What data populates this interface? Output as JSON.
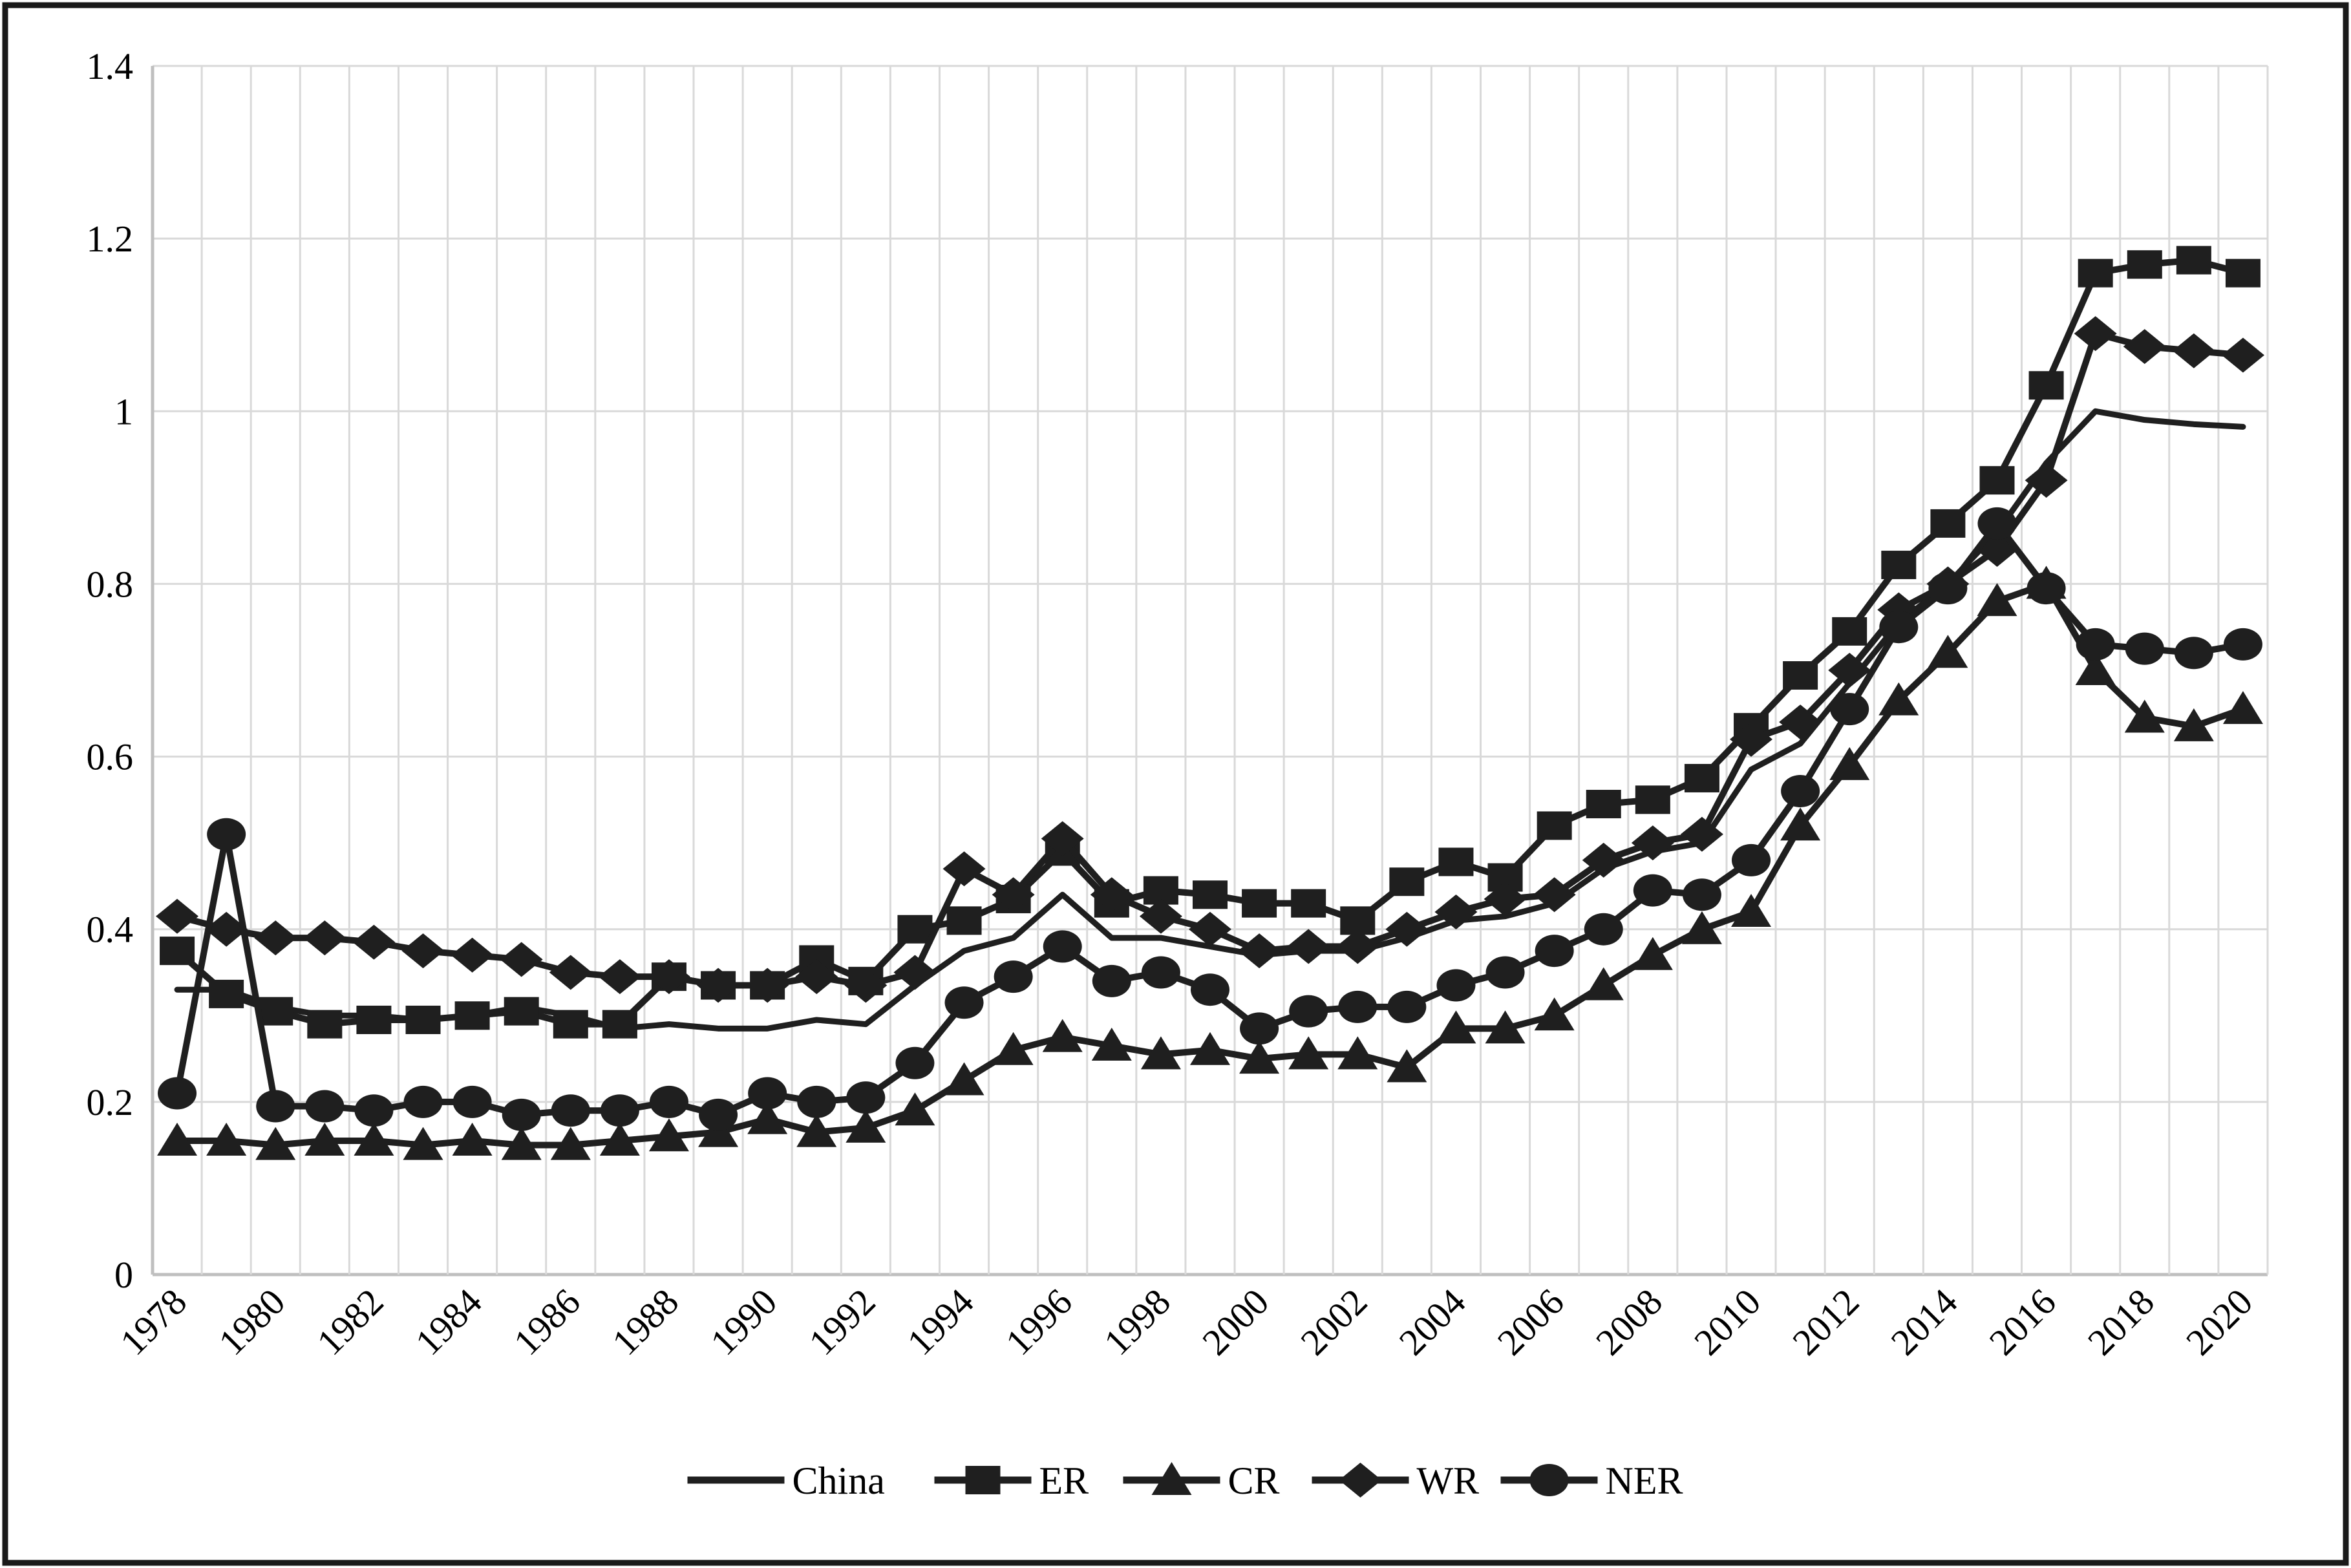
{
  "figure": {
    "background": "#ffffff",
    "border_color": "#1a1a1a",
    "plot_background": "#ffffff"
  },
  "chart_data": {
    "type": "line",
    "title": "",
    "xlabel": "",
    "ylabel": "",
    "ylim": [
      0,
      1.4
    ],
    "ytick_step": 0.2,
    "yticklabels": [
      "0",
      "0.2",
      "0.4",
      "0.6",
      "0.8",
      "1",
      "1.2",
      "1.4"
    ],
    "xtick_every": 2,
    "grid": true,
    "gridline_color": "#d9d9d9",
    "axis_edge_color": "#bfbfbf",
    "series_color": "#1f1f1f",
    "legend_position": "bottom",
    "categories": [
      1978,
      1979,
      1980,
      1981,
      1982,
      1983,
      1984,
      1985,
      1986,
      1987,
      1988,
      1989,
      1990,
      1991,
      1992,
      1993,
      1994,
      1995,
      1996,
      1997,
      1998,
      1999,
      2000,
      2001,
      2002,
      2003,
      2004,
      2005,
      2006,
      2007,
      2008,
      2009,
      2010,
      2011,
      2012,
      2013,
      2014,
      2015,
      2016,
      2017,
      2018,
      2019,
      2020
    ],
    "series": [
      {
        "name": "China",
        "marker": "none",
        "values": [
          0.33,
          0.33,
          0.31,
          0.3,
          0.3,
          0.295,
          0.3,
          0.31,
          0.3,
          0.285,
          0.29,
          0.285,
          0.285,
          0.295,
          0.29,
          0.335,
          0.375,
          0.39,
          0.44,
          0.39,
          0.39,
          0.38,
          0.37,
          0.375,
          0.375,
          0.39,
          0.41,
          0.415,
          0.43,
          0.47,
          0.49,
          0.5,
          0.585,
          0.615,
          0.685,
          0.755,
          0.8,
          0.86,
          0.94,
          1.0,
          0.99,
          0.985,
          0.982
        ]
      },
      {
        "name": "ER",
        "marker": "square",
        "values": [
          0.375,
          0.325,
          0.305,
          0.29,
          0.295,
          0.295,
          0.3,
          0.305,
          0.29,
          0.29,
          0.345,
          0.335,
          0.335,
          0.365,
          0.34,
          0.4,
          0.41,
          0.435,
          0.49,
          0.43,
          0.445,
          0.44,
          0.43,
          0.43,
          0.41,
          0.455,
          0.478,
          0.46,
          0.52,
          0.545,
          0.55,
          0.575,
          0.634,
          0.694,
          0.745,
          0.822,
          0.87,
          0.92,
          1.03,
          1.16,
          1.17,
          1.175,
          1.16
        ]
      },
      {
        "name": "CR",
        "marker": "triangle",
        "values": [
          0.155,
          0.155,
          0.15,
          0.155,
          0.155,
          0.15,
          0.155,
          0.15,
          0.15,
          0.155,
          0.16,
          0.165,
          0.18,
          0.165,
          0.17,
          0.19,
          0.225,
          0.26,
          0.275,
          0.265,
          0.255,
          0.26,
          0.25,
          0.255,
          0.255,
          0.24,
          0.285,
          0.285,
          0.3,
          0.335,
          0.37,
          0.4,
          0.42,
          0.52,
          0.59,
          0.665,
          0.72,
          0.78,
          0.8,
          0.7,
          0.645,
          0.635,
          0.655
        ]
      },
      {
        "name": "WR",
        "marker": "diamond",
        "values": [
          0.415,
          0.4,
          0.39,
          0.39,
          0.385,
          0.375,
          0.37,
          0.365,
          0.35,
          0.345,
          0.345,
          0.335,
          0.335,
          0.345,
          0.335,
          0.35,
          0.47,
          0.44,
          0.505,
          0.44,
          0.415,
          0.4,
          0.375,
          0.38,
          0.38,
          0.4,
          0.42,
          0.435,
          0.44,
          0.48,
          0.5,
          0.51,
          0.62,
          0.64,
          0.7,
          0.77,
          0.8,
          0.84,
          0.92,
          1.09,
          1.075,
          1.07,
          1.065
        ]
      },
      {
        "name": "NER",
        "marker": "circle",
        "values": [
          0.21,
          0.51,
          0.195,
          0.195,
          0.19,
          0.2,
          0.2,
          0.185,
          0.19,
          0.19,
          0.2,
          0.185,
          0.21,
          0.2,
          0.205,
          0.245,
          0.315,
          0.345,
          0.38,
          0.34,
          0.35,
          0.33,
          0.285,
          0.305,
          0.31,
          0.31,
          0.335,
          0.35,
          0.375,
          0.4,
          0.445,
          0.44,
          0.48,
          0.56,
          0.655,
          0.75,
          0.795,
          0.87,
          0.795,
          0.73,
          0.725,
          0.72,
          0.73
        ]
      }
    ]
  }
}
